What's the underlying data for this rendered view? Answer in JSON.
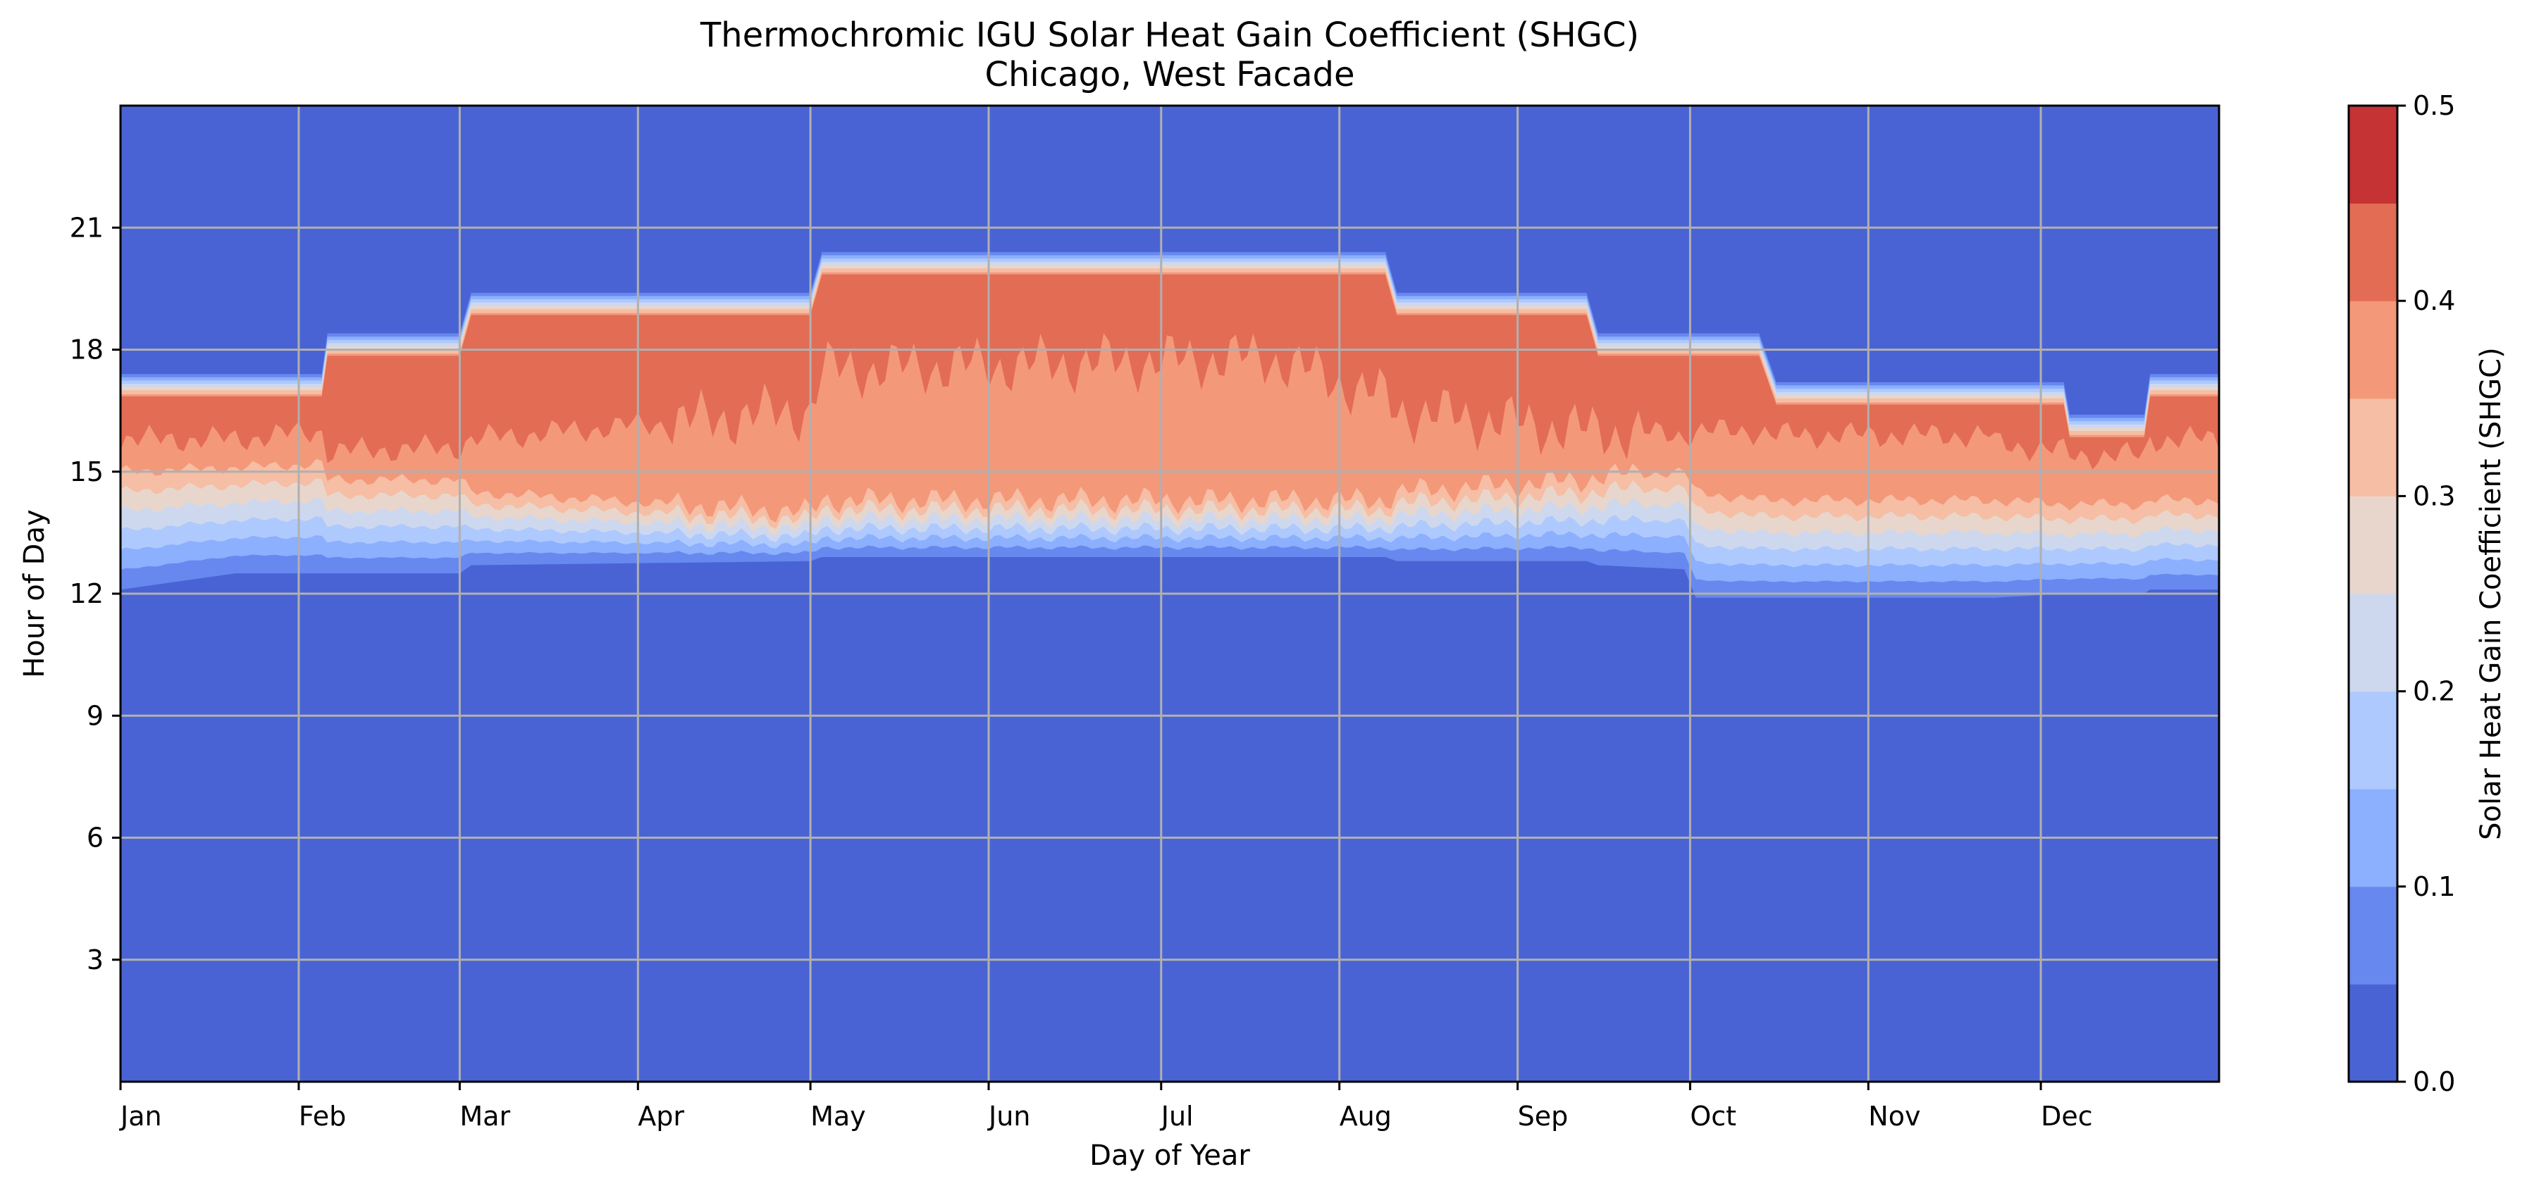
{
  "chart_data": {
    "type": "heatmap",
    "title": "Thermochromic IGU Solar Heat Gain Coefficient (SHGC)",
    "subtitle": "Chicago, West Facade",
    "xlabel": "Day of Year",
    "ylabel": "Hour of Day",
    "colorbar_label": "Solar Heat Gain Coefficient (SHGC)",
    "colormap": "coolwarm",
    "xlim": [
      0,
      365
    ],
    "ylim": [
      0,
      24
    ],
    "x_ticks": [
      {
        "day": 0,
        "label": "Jan"
      },
      {
        "day": 31,
        "label": "Feb"
      },
      {
        "day": 59,
        "label": "Mar"
      },
      {
        "day": 90,
        "label": "Apr"
      },
      {
        "day": 120,
        "label": "May"
      },
      {
        "day": 151,
        "label": "Jun"
      },
      {
        "day": 181,
        "label": "Jul"
      },
      {
        "day": 212,
        "label": "Aug"
      },
      {
        "day": 243,
        "label": "Sep"
      },
      {
        "day": 273,
        "label": "Oct"
      },
      {
        "day": 304,
        "label": "Nov"
      },
      {
        "day": 334,
        "label": "Dec"
      }
    ],
    "y_ticks": [
      3,
      6,
      9,
      12,
      15,
      18,
      21
    ],
    "y_tick_labels": [
      "3",
      "6",
      "9",
      "12",
      "15",
      "18",
      "21"
    ],
    "colorbar_range": [
      0.0,
      0.5
    ],
    "colorbar_ticks": [
      0.0,
      0.1,
      0.2,
      0.3,
      0.4,
      0.5
    ],
    "colorbar_tick_labels": [
      "0.0",
      "0.1",
      "0.2",
      "0.3",
      "0.4",
      "0.5"
    ],
    "levels": [
      0.0,
      0.05,
      0.1,
      0.15,
      0.2,
      0.25,
      0.3,
      0.35,
      0.4,
      0.45,
      0.5
    ],
    "level_colors": [
      "#4a63d4",
      "#6788ee",
      "#8caffe",
      "#aec9fd",
      "#cdd8ee",
      "#e8d6cc",
      "#f6bea4",
      "#f4987a",
      "#e36c55",
      "#c53334"
    ],
    "grid": true,
    "daily_profile": {
      "description": "approximate per-day shading: hour where SHGC rises above 0, hours of the 0.35+ and 0.40+ bands, and hour where it drops back to 0",
      "day": [
        0,
        20,
        35,
        36,
        59,
        61,
        120,
        122,
        200,
        212,
        220,
        222,
        255,
        257,
        272,
        274,
        285,
        288,
        305,
        320,
        325,
        326,
        338,
        339,
        352,
        353,
        365
      ],
      "rise_hour": [
        12.1,
        12.5,
        12.5,
        12.5,
        12.5,
        12.7,
        12.8,
        12.9,
        12.9,
        12.9,
        12.9,
        12.8,
        12.8,
        12.7,
        12.6,
        11.9,
        11.9,
        11.9,
        11.9,
        11.9,
        11.9,
        11.9,
        12.0,
        12.0,
        12.0,
        12.1,
        12.1
      ],
      "band_035_from": [
        15.0,
        15.1,
        15.2,
        14.8,
        14.8,
        14.5,
        14.0,
        14.3,
        14.3,
        14.3,
        14.3,
        14.5,
        14.8,
        14.9,
        15.0,
        14.5,
        14.3,
        14.3,
        14.3,
        14.3,
        14.3,
        14.3,
        14.2,
        14.2,
        14.2,
        14.3,
        14.3
      ],
      "band_040_from": [
        15.8,
        15.8,
        16.0,
        15.5,
        15.6,
        15.8,
        16.5,
        17.5,
        17.8,
        17.2,
        16.8,
        16.5,
        16.0,
        16.0,
        15.9,
        16.0,
        16.0,
        15.9,
        15.9,
        15.9,
        15.9,
        15.7,
        15.5,
        15.4,
        15.4,
        15.8,
        15.8
      ],
      "set_hour": [
        17.4,
        17.4,
        17.4,
        18.4,
        18.4,
        19.4,
        19.4,
        20.4,
        20.4,
        20.4,
        20.4,
        19.4,
        19.4,
        18.4,
        18.4,
        18.4,
        18.4,
        17.2,
        17.2,
        17.2,
        17.2,
        17.2,
        17.2,
        16.4,
        16.4,
        17.4,
        17.4
      ]
    }
  }
}
